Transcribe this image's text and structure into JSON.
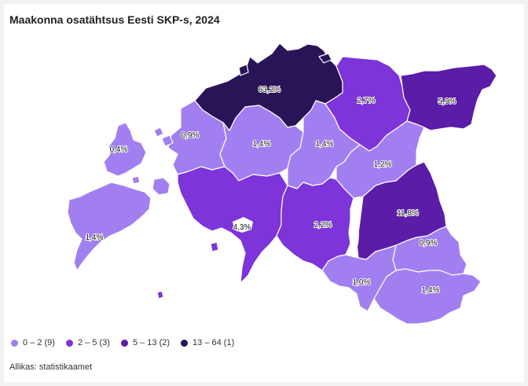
{
  "title": "Maakonna osatähtsus Eesti SKP-s, 2024",
  "colors": {
    "class1": "#a27ff0",
    "class2": "#7d34d9",
    "class3": "#5b1ca8",
    "class4": "#2a1458"
  },
  "counties": [
    {
      "id": "harju",
      "value": "63,2%",
      "class": "class4"
    },
    {
      "id": "laane-viru",
      "value": "2,7%",
      "class": "class2"
    },
    {
      "id": "ida-viru",
      "value": "5,9%",
      "class": "class3"
    },
    {
      "id": "laane",
      "value": "0,9%",
      "class": "class1"
    },
    {
      "id": "rapla",
      "value": "1,4%",
      "class": "class1"
    },
    {
      "id": "jarva",
      "value": "1,4%",
      "class": "class1"
    },
    {
      "id": "jogeva",
      "value": "1,2%",
      "class": "class1"
    },
    {
      "id": "hiiu",
      "value": "0,4%",
      "class": "class1"
    },
    {
      "id": "saare",
      "value": "1,4%",
      "class": "class1"
    },
    {
      "id": "parnu",
      "value": "4,3%",
      "class": "class2"
    },
    {
      "id": "viljandi",
      "value": "2,2%",
      "class": "class2"
    },
    {
      "id": "tartu",
      "value": "11,8%",
      "class": "class3"
    },
    {
      "id": "polva",
      "value": "0,9%",
      "class": "class1"
    },
    {
      "id": "valga",
      "value": "1,0%",
      "class": "class1"
    },
    {
      "id": "voru",
      "value": "1,4%",
      "class": "class1"
    }
  ],
  "legend": [
    {
      "label": "0 – 2 (9)",
      "class": "class1"
    },
    {
      "label": "2 – 5 (3)",
      "class": "class2"
    },
    {
      "label": "5 – 13 (2)",
      "class": "class3"
    },
    {
      "label": "13 – 64 (1)",
      "class": "class4"
    }
  ],
  "source": "Allikas: statistikaamet"
}
